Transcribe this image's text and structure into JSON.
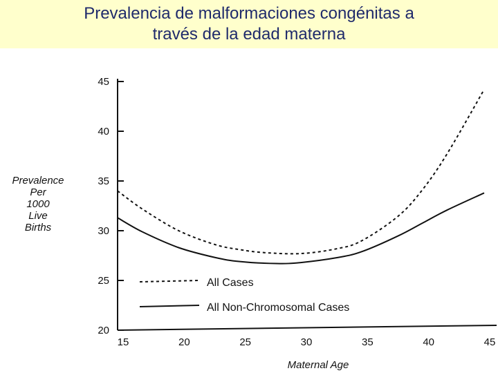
{
  "header": {
    "title_line1": "Prevalencia de malformaciones congénitas a",
    "title_line2": "través de la edad materna"
  },
  "colors": {
    "title_band": "#ffffcc",
    "title_text": "#1f2a6b",
    "ink": "#111111"
  },
  "chart_data": {
    "type": "line",
    "title": "Prevalencia de malformaciones congénitas a través de la edad materna",
    "xlabel": "Maternal Age",
    "ylabel_lines": [
      "Prevalence",
      "Per",
      "1000",
      "Live",
      "Births"
    ],
    "xlim": [
      15,
      45
    ],
    "ylim": [
      20,
      45
    ],
    "x_ticks": [
      15,
      20,
      25,
      30,
      35,
      40,
      45
    ],
    "y_ticks": [
      20,
      25,
      30,
      35,
      40,
      45
    ],
    "grid": false,
    "legend_position": "bottom-left",
    "series": [
      {
        "name": "All Cases",
        "style": "dashed",
        "x": [
          15,
          17,
          20,
          23,
          25,
          27,
          30,
          33,
          35,
          38,
          40,
          42,
          45
        ],
        "y": [
          34.0,
          32.2,
          30.0,
          28.6,
          28.1,
          27.8,
          27.7,
          28.2,
          29.0,
          31.5,
          34.2,
          37.8,
          44.2
        ]
      },
      {
        "name": "All Non-Chromosomal Cases",
        "style": "solid",
        "x": [
          15,
          17,
          20,
          23,
          25,
          28,
          30,
          33,
          35,
          38,
          40,
          42,
          45
        ],
        "y": [
          31.3,
          29.9,
          28.3,
          27.3,
          26.9,
          26.7,
          26.8,
          27.3,
          27.9,
          29.5,
          30.8,
          32.1,
          33.8
        ]
      }
    ]
  }
}
